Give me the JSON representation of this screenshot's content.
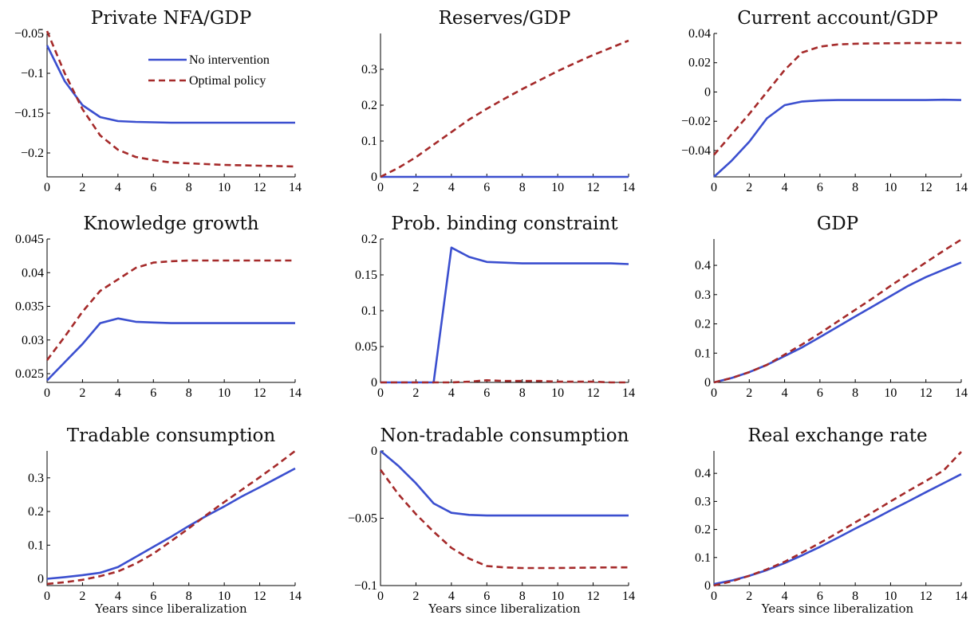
{
  "colors": {
    "no_intervention": "#3b4fcf",
    "optimal_policy": "#a52a2a"
  },
  "legend": {
    "items": [
      "No intervention",
      "Optimal policy"
    ],
    "placement": "top-right of first panel"
  },
  "xlabel": "Years since liberalization",
  "chart_data": [
    {
      "type": "line",
      "title": "Private NFA/GDP",
      "xlim": [
        0,
        14
      ],
      "ylim": [
        -0.23,
        -0.05
      ],
      "xticks": [
        0,
        2,
        4,
        6,
        8,
        10,
        12,
        14
      ],
      "xtick_labels": [
        "0",
        "2",
        "4",
        "6",
        "8",
        "10",
        "12",
        "14"
      ],
      "yticks": [
        -0.05,
        -0.1,
        -0.15,
        -0.2
      ],
      "ytick_labels": [
        "−0.05",
        "−0.1",
        "−0.15",
        "−0.2"
      ],
      "xlabel": "",
      "x": [
        0,
        1,
        2,
        3,
        4,
        5,
        6,
        7,
        8,
        9,
        10,
        11,
        12,
        13,
        14
      ],
      "series": [
        {
          "name": "No intervention",
          "style": "solid",
          "values": [
            -0.065,
            -0.11,
            -0.14,
            -0.155,
            -0.16,
            -0.161,
            -0.1615,
            -0.162,
            -0.162,
            -0.162,
            -0.162,
            -0.162,
            -0.162,
            -0.162,
            -0.162
          ]
        },
        {
          "name": "Optimal policy",
          "style": "dashed",
          "values": [
            -0.047,
            -0.1,
            -0.145,
            -0.178,
            -0.196,
            -0.205,
            -0.209,
            -0.212,
            -0.213,
            -0.214,
            -0.215,
            -0.2155,
            -0.216,
            -0.2165,
            -0.217
          ]
        }
      ]
    },
    {
      "type": "line",
      "title": "Reserves/GDP",
      "xlim": [
        0,
        14
      ],
      "ylim": [
        0,
        0.4
      ],
      "xticks": [
        0,
        2,
        4,
        6,
        8,
        10,
        12,
        14
      ],
      "xtick_labels": [
        "0",
        "2",
        "4",
        "6",
        "8",
        "10",
        "12",
        "14"
      ],
      "yticks": [
        0,
        0.1,
        0.2,
        0.3
      ],
      "ytick_labels": [
        "0",
        "0.1",
        "0.2",
        "0.3"
      ],
      "xlabel": "",
      "x": [
        0,
        1,
        2,
        3,
        4,
        5,
        6,
        7,
        8,
        9,
        10,
        11,
        12,
        13,
        14
      ],
      "series": [
        {
          "name": "No intervention",
          "style": "solid",
          "values": [
            0,
            0,
            0,
            0,
            0,
            0,
            0,
            0,
            0,
            0,
            0,
            0,
            0,
            0,
            0
          ]
        },
        {
          "name": "Optimal policy",
          "style": "dashed",
          "values": [
            0,
            0.025,
            0.055,
            0.09,
            0.125,
            0.16,
            0.19,
            0.218,
            0.245,
            0.27,
            0.295,
            0.318,
            0.34,
            0.36,
            0.38
          ]
        }
      ]
    },
    {
      "type": "line",
      "title": "Current account/GDP",
      "xlim": [
        0,
        14
      ],
      "ylim": [
        -0.058,
        0.04
      ],
      "xticks": [
        0,
        2,
        4,
        6,
        8,
        10,
        12,
        14
      ],
      "xtick_labels": [
        "0",
        "2",
        "4",
        "6",
        "8",
        "10",
        "12",
        "14"
      ],
      "yticks": [
        0.04,
        0.02,
        0,
        -0.02,
        -0.04
      ],
      "ytick_labels": [
        "0.04",
        "0.02",
        "0",
        "−0.02",
        "−0.04"
      ],
      "xlabel": "",
      "x": [
        0,
        1,
        2,
        3,
        4,
        5,
        6,
        7,
        8,
        9,
        10,
        11,
        12,
        13,
        14
      ],
      "series": [
        {
          "name": "No intervention",
          "style": "solid",
          "values": [
            -0.058,
            -0.047,
            -0.034,
            -0.018,
            -0.009,
            -0.0065,
            -0.0058,
            -0.0055,
            -0.0055,
            -0.0055,
            -0.0055,
            -0.0055,
            -0.0055,
            -0.0053,
            -0.0055
          ]
        },
        {
          "name": "Optimal policy",
          "style": "dashed",
          "values": [
            -0.043,
            -0.029,
            -0.015,
            0.0,
            0.015,
            0.027,
            0.031,
            0.0325,
            0.033,
            0.0332,
            0.0333,
            0.0334,
            0.0334,
            0.0335,
            0.0335
          ]
        }
      ]
    },
    {
      "type": "line",
      "title": "Knowledge growth",
      "xlim": [
        0,
        14
      ],
      "ylim": [
        0.0237,
        0.045
      ],
      "xticks": [
        0,
        2,
        4,
        6,
        8,
        10,
        12,
        14
      ],
      "xtick_labels": [
        "0",
        "2",
        "4",
        "6",
        "8",
        "10",
        "12",
        "14"
      ],
      "yticks": [
        0.045,
        0.04,
        0.035,
        0.03,
        0.025
      ],
      "ytick_labels": [
        "0.045",
        "0.04",
        "0.035",
        "0.03",
        "0.025"
      ],
      "xlabel": "",
      "x": [
        0,
        1,
        2,
        3,
        4,
        5,
        6,
        7,
        8,
        9,
        10,
        11,
        12,
        13,
        14
      ],
      "series": [
        {
          "name": "No intervention",
          "style": "solid",
          "values": [
            0.024,
            0.0267,
            0.0294,
            0.0325,
            0.0332,
            0.0327,
            0.0326,
            0.0325,
            0.0325,
            0.0325,
            0.0325,
            0.0325,
            0.0325,
            0.0325,
            0.0325
          ]
        },
        {
          "name": "Optimal policy",
          "style": "dashed",
          "values": [
            0.027,
            0.0305,
            0.0342,
            0.0373,
            0.039,
            0.0407,
            0.0415,
            0.0417,
            0.0418,
            0.0418,
            0.0418,
            0.0418,
            0.0418,
            0.0418,
            0.0418
          ]
        }
      ]
    },
    {
      "type": "line",
      "title": "Prob. binding constraint",
      "xlim": [
        0,
        14
      ],
      "ylim": [
        0,
        0.2
      ],
      "xticks": [
        0,
        2,
        4,
        6,
        8,
        10,
        12,
        14
      ],
      "xtick_labels": [
        "0",
        "2",
        "4",
        "6",
        "8",
        "10",
        "12",
        "14"
      ],
      "yticks": [
        0.2,
        0.15,
        0.1,
        0.05,
        0
      ],
      "ytick_labels": [
        "0.2",
        "0.15",
        "0.1",
        "0.05",
        "0"
      ],
      "xlabel": "",
      "x": [
        0,
        1,
        2,
        3,
        4,
        5,
        6,
        7,
        8,
        9,
        10,
        11,
        12,
        13,
        14
      ],
      "series": [
        {
          "name": "No intervention",
          "style": "solid",
          "values": [
            0,
            0,
            0,
            0,
            0.188,
            0.175,
            0.168,
            0.167,
            0.166,
            0.166,
            0.166,
            0.166,
            0.166,
            0.166,
            0.165
          ]
        },
        {
          "name": "Optimal policy",
          "style": "dashed",
          "values": [
            0,
            0,
            0,
            0,
            0,
            0.001,
            0.003,
            0.002,
            0.002,
            0.002,
            0.001,
            0.001,
            0.001,
            0.0,
            0.0
          ]
        }
      ]
    },
    {
      "type": "line",
      "title": "GDP",
      "xlim": [
        0,
        14
      ],
      "ylim": [
        0,
        0.49
      ],
      "xticks": [
        0,
        2,
        4,
        6,
        8,
        10,
        12,
        14
      ],
      "xtick_labels": [
        "0",
        "2",
        "4",
        "6",
        "8",
        "10",
        "12",
        "14"
      ],
      "yticks": [
        0.4,
        0.3,
        0.2,
        0.1,
        0
      ],
      "ytick_labels": [
        "0.4",
        "0.3",
        "0.2",
        "0.1",
        "0"
      ],
      "xlabel": "",
      "x": [
        0,
        1,
        2,
        3,
        4,
        5,
        6,
        7,
        8,
        9,
        10,
        11,
        12,
        13,
        14
      ],
      "series": [
        {
          "name": "No intervention",
          "style": "solid",
          "values": [
            0,
            0.015,
            0.035,
            0.06,
            0.09,
            0.12,
            0.155,
            0.19,
            0.225,
            0.26,
            0.295,
            0.33,
            0.36,
            0.385,
            0.41
          ]
        },
        {
          "name": "Optimal policy",
          "style": "dashed",
          "values": [
            0,
            0.015,
            0.035,
            0.06,
            0.095,
            0.13,
            0.168,
            0.208,
            0.248,
            0.288,
            0.33,
            0.37,
            0.41,
            0.45,
            0.488
          ]
        }
      ]
    },
    {
      "type": "line",
      "title": "Tradable consumption",
      "xlim": [
        0,
        14
      ],
      "ylim": [
        -0.02,
        0.38
      ],
      "xticks": [
        0,
        2,
        4,
        6,
        8,
        10,
        12,
        14
      ],
      "xtick_labels": [
        "0",
        "2",
        "4",
        "6",
        "8",
        "10",
        "12",
        "14"
      ],
      "yticks": [
        0.3,
        0.2,
        0.1,
        0
      ],
      "ytick_labels": [
        "0.3",
        "0.2",
        "0.1",
        "0"
      ],
      "xlabel": "Years since liberalization",
      "x": [
        0,
        1,
        2,
        3,
        4,
        5,
        6,
        7,
        8,
        9,
        10,
        11,
        12,
        13,
        14
      ],
      "series": [
        {
          "name": "No intervention",
          "style": "solid",
          "values": [
            0,
            0.005,
            0.011,
            0.018,
            0.035,
            0.065,
            0.095,
            0.125,
            0.157,
            0.187,
            0.215,
            0.245,
            0.272,
            0.3,
            0.328
          ]
        },
        {
          "name": "Optimal policy",
          "style": "dashed",
          "values": [
            -0.015,
            -0.01,
            -0.003,
            0.008,
            0.022,
            0.045,
            0.075,
            0.112,
            0.15,
            0.19,
            0.228,
            0.265,
            0.302,
            0.34,
            0.38
          ]
        }
      ]
    },
    {
      "type": "line",
      "title": "Non-tradable consumption",
      "xlim": [
        0,
        14
      ],
      "ylim": [
        -0.1,
        0
      ],
      "xticks": [
        0,
        2,
        4,
        6,
        8,
        10,
        12,
        14
      ],
      "xtick_labels": [
        "0",
        "2",
        "4",
        "6",
        "8",
        "10",
        "12",
        "14"
      ],
      "yticks": [
        0,
        -0.05,
        -0.1
      ],
      "ytick_labels": [
        "0",
        "−0.05",
        "−0.1"
      ],
      "xlabel": "Years since liberalization",
      "x": [
        0,
        1,
        2,
        3,
        4,
        5,
        6,
        7,
        8,
        9,
        10,
        11,
        12,
        13,
        14
      ],
      "series": [
        {
          "name": "No intervention",
          "style": "solid",
          "values": [
            0,
            -0.011,
            -0.024,
            -0.039,
            -0.046,
            -0.0475,
            -0.048,
            -0.048,
            -0.048,
            -0.048,
            -0.048,
            -0.048,
            -0.048,
            -0.048,
            -0.048
          ]
        },
        {
          "name": "Optimal policy",
          "style": "dashed",
          "values": [
            -0.014,
            -0.032,
            -0.047,
            -0.06,
            -0.072,
            -0.08,
            -0.0855,
            -0.0865,
            -0.087,
            -0.087,
            -0.087,
            -0.0868,
            -0.0866,
            -0.0865,
            -0.0865
          ]
        }
      ]
    },
    {
      "type": "line",
      "title": "Real exchange rate",
      "xlim": [
        0,
        14
      ],
      "ylim": [
        0,
        0.48
      ],
      "xticks": [
        0,
        2,
        4,
        6,
        8,
        10,
        12,
        14
      ],
      "xtick_labels": [
        "0",
        "2",
        "4",
        "6",
        "8",
        "10",
        "12",
        "14"
      ],
      "yticks": [
        0.4,
        0.3,
        0.2,
        0.1,
        0
      ],
      "ytick_labels": [
        "0.4",
        "0.3",
        "0.2",
        "0.1",
        "0"
      ],
      "xlabel": "Years since liberalization",
      "x": [
        0,
        1,
        2,
        3,
        4,
        5,
        6,
        7,
        8,
        9,
        10,
        11,
        12,
        13,
        14
      ],
      "series": [
        {
          "name": "No intervention",
          "style": "solid",
          "values": [
            0.005,
            0.018,
            0.035,
            0.055,
            0.08,
            0.108,
            0.138,
            0.17,
            0.203,
            0.235,
            0.268,
            0.3,
            0.333,
            0.365,
            0.397
          ]
        },
        {
          "name": "Optimal policy",
          "style": "dashed",
          "values": [
            0,
            0.015,
            0.035,
            0.058,
            0.085,
            0.118,
            0.152,
            0.188,
            0.225,
            0.262,
            0.3,
            0.337,
            0.373,
            0.41,
            0.477
          ]
        }
      ]
    }
  ]
}
